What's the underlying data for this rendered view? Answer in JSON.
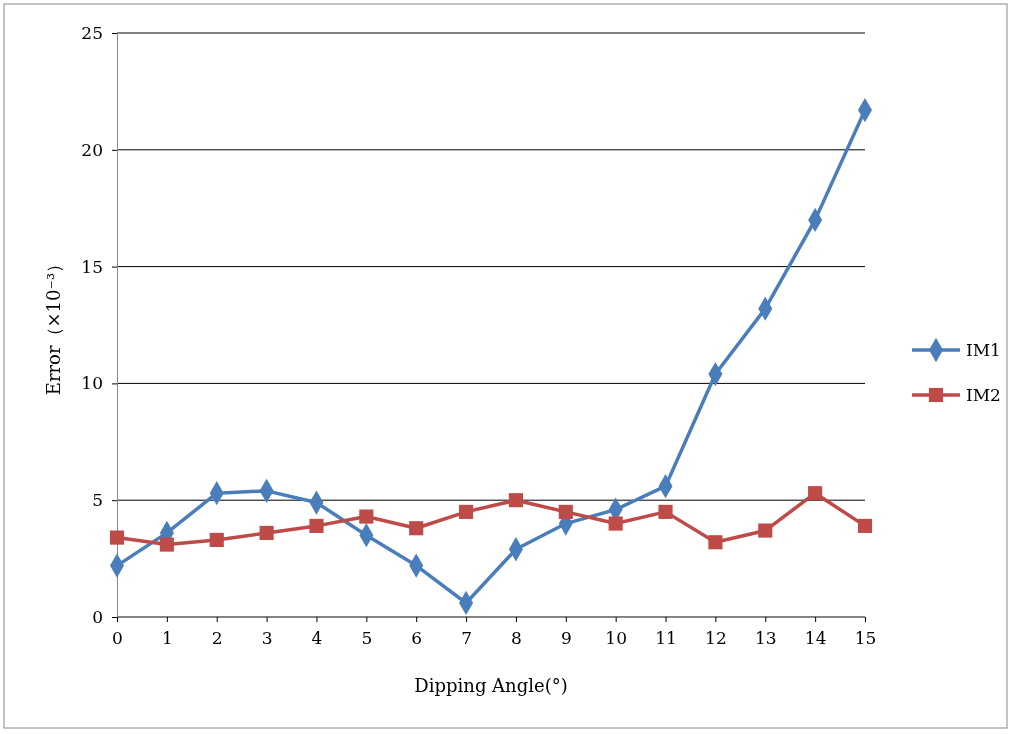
{
  "chart_data": {
    "type": "line",
    "xlabel": "Dipping Angle(°)",
    "ylabel": "Error（×10⁻³）",
    "x": [
      0,
      1,
      2,
      3,
      4,
      5,
      6,
      7,
      8,
      9,
      10,
      11,
      12,
      13,
      14,
      15
    ],
    "xlim": [
      0,
      15
    ],
    "xticks": [
      0,
      1,
      2,
      3,
      4,
      5,
      6,
      7,
      8,
      9,
      10,
      11,
      12,
      13,
      14,
      15
    ],
    "ylim": [
      0,
      25
    ],
    "yticks": [
      0,
      5,
      10,
      15,
      20,
      25
    ],
    "grid": "y",
    "legend": "right",
    "line_style": "solid",
    "series": [
      {
        "name": "IM1",
        "color": "#4a7ebb",
        "marker": "diamond",
        "values": [
          2.2,
          3.6,
          5.3,
          5.4,
          4.9,
          3.5,
          2.2,
          0.6,
          2.9,
          4.0,
          4.6,
          5.6,
          10.4,
          13.2,
          17.0,
          21.7
        ]
      },
      {
        "name": "IM2",
        "color": "#be4b48",
        "marker": "square",
        "values": [
          3.4,
          3.1,
          3.3,
          3.6,
          3.9,
          4.3,
          3.8,
          4.5,
          5.0,
          4.5,
          4.0,
          4.5,
          3.2,
          3.7,
          5.3,
          3.9
        ]
      }
    ]
  }
}
